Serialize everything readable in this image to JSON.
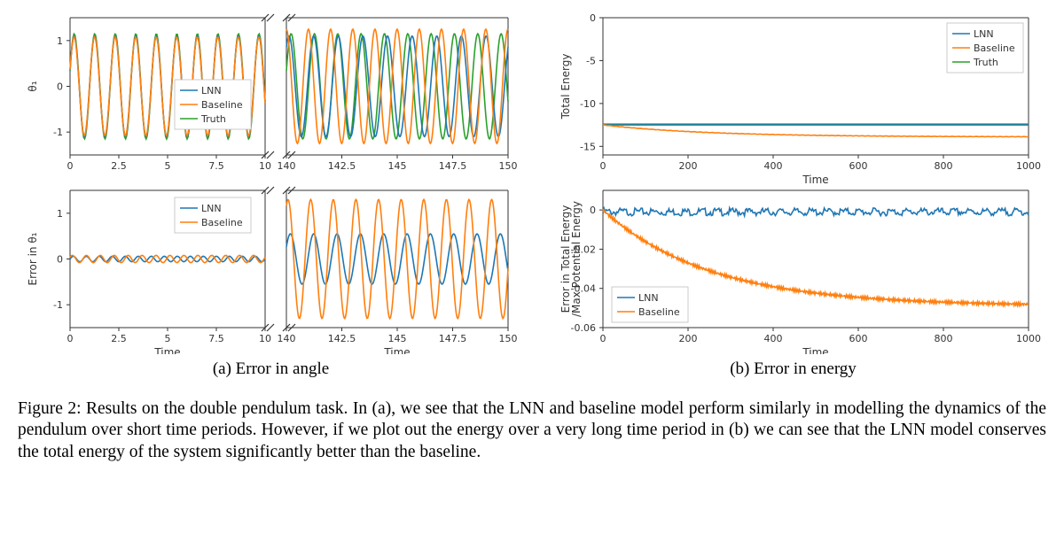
{
  "colors": {
    "lnn": "#1f77b4",
    "baseline": "#ff7f0e",
    "truth": "#2ca02c",
    "axis": "#333333",
    "bg": "#ffffff",
    "legend_border": "#bfbfbf"
  },
  "subcaption_a": "(a) Error in angle",
  "subcaption_b": "(b) Error in energy",
  "caption": "Figure 2: Results on the double pendulum task. In (a), we see that the LNN and baseline model perform similarly in modelling the dynamics of the pendulum over short time periods. However, if we plot out the energy over a very long time period in (b) we can see that the LNN model conserves the total energy of the system significantly better than the baseline.",
  "legend_labels": {
    "lnn": "LNN",
    "baseline": "Baseline",
    "truth": "Truth"
  },
  "panel_a": {
    "top_left": {
      "ylabel": "θ₁",
      "xlim": [
        0,
        10
      ],
      "ylim": [
        -1.5,
        1.5
      ],
      "xticks": [
        0.0,
        2.5,
        5.0,
        7.5,
        10.0
      ],
      "yticks": [
        -1,
        0,
        1
      ],
      "series": {
        "truth": {
          "amp": 1.15,
          "freq": 0.95,
          "phase": 0.3,
          "offset": 0
        },
        "lnn": {
          "amp": 1.1,
          "freq": 0.95,
          "phase": 0.32,
          "offset": 0
        },
        "baseline": {
          "amp": 1.08,
          "freq": 0.95,
          "phase": 0.34,
          "offset": 0
        }
      }
    },
    "top_right": {
      "xlim": [
        140,
        150
      ],
      "ylim": [
        -1.5,
        1.5
      ],
      "xticks": [
        140.0,
        142.5,
        145.0,
        147.5,
        150.0
      ],
      "yticks": [
        -1,
        0,
        1
      ],
      "series": {
        "truth": {
          "amp": 1.15,
          "freq": 0.95,
          "phase": 0.3,
          "offset": 0
        },
        "lnn": {
          "amp": 1.1,
          "freq": 0.9,
          "phase": 0.9,
          "offset": 0
        },
        "baseline": {
          "amp": 1.25,
          "freq": 1.0,
          "phase": 1.6,
          "offset": 0
        }
      }
    },
    "bot_left": {
      "ylabel": "Error in θ₁",
      "xlabel": "Time",
      "xlim": [
        0,
        10
      ],
      "ylim": [
        -1.5,
        1.5
      ],
      "xticks": [
        0.0,
        2.5,
        5.0,
        7.5,
        10.0
      ],
      "yticks": [
        -1,
        0,
        1
      ],
      "series": {
        "lnn": {
          "amp": 0.06,
          "freq": 1.5,
          "phase": 0.0,
          "offset": 0
        },
        "baseline": {
          "amp": 0.08,
          "freq": 1.4,
          "phase": 0.5,
          "offset": 0
        }
      }
    },
    "bot_right": {
      "xlabel": "Time",
      "xlim": [
        140,
        150
      ],
      "ylim": [
        -1.5,
        1.5
      ],
      "xticks": [
        140.0,
        142.5,
        145.0,
        147.5,
        150.0
      ],
      "yticks": [
        -1,
        0,
        1
      ],
      "series": {
        "lnn": {
          "amp": 0.55,
          "freq": 0.95,
          "phase": 0.5,
          "offset": 0
        },
        "baseline": {
          "amp": 1.3,
          "freq": 0.98,
          "phase": 1.1,
          "offset": 0
        }
      }
    }
  },
  "panel_b": {
    "top": {
      "ylabel": "Total Energy",
      "xlabel": "Time",
      "xlim": [
        0,
        1000
      ],
      "ylim": [
        -16,
        0
      ],
      "xticks": [
        0,
        200,
        400,
        600,
        800,
        1000
      ],
      "yticks": [
        -15,
        -10,
        -5,
        0
      ],
      "series": {
        "truth": {
          "type": "flat",
          "value": -12.4
        },
        "lnn": {
          "type": "flat",
          "value": -12.5
        },
        "baseline": {
          "type": "decay",
          "start": -12.5,
          "end": -13.9,
          "noise": 0.04
        }
      }
    },
    "bot": {
      "ylabel_line1": "Error in Total Energy",
      "ylabel_line2": "/Max Potential Energy",
      "xlabel": "Time",
      "xlim": [
        0,
        1000
      ],
      "ylim": [
        -0.06,
        0.01
      ],
      "xticks": [
        0,
        200,
        400,
        600,
        800,
        1000
      ],
      "yticks": [
        -0.06,
        -0.04,
        -0.02,
        0.0
      ],
      "series": {
        "lnn": {
          "type": "flat_noise",
          "value": 0.0,
          "noise": 0.001
        },
        "baseline": {
          "type": "exp_decay",
          "start": 0.0,
          "end": -0.049,
          "rate": 0.004,
          "noise": 0.0008
        }
      }
    }
  }
}
